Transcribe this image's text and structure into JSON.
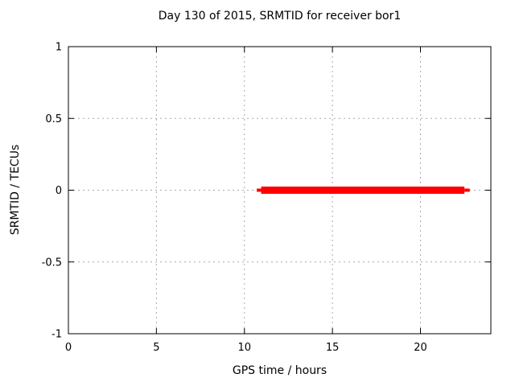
{
  "figure": {
    "title": "Day 130 of 2015, SRMTID for receiver bor1",
    "xlabel": "GPS time / hours",
    "ylabel": "SRMTID / TECUs"
  },
  "chart_data": {
    "type": "line",
    "title": "Day 130 of 2015, SRMTID for receiver bor1",
    "xlabel": "GPS time / hours",
    "ylabel": "SRMTID / TECUs",
    "xlim": [
      0,
      24
    ],
    "ylim": [
      -1,
      1
    ],
    "xticks": {
      "values": [
        0,
        5,
        10,
        15,
        20
      ],
      "labels": [
        "0",
        "5",
        "10",
        "15",
        "20"
      ]
    },
    "yticks": {
      "values": [
        1,
        0.5,
        0,
        -0.5,
        -1
      ],
      "labels": [
        "1",
        "0.5",
        "0",
        "-0.5",
        "-1"
      ]
    },
    "grid": true,
    "grid_style": "dashed",
    "legend": "none",
    "series": [
      {
        "name": "SRMTID",
        "color": "#ff0000",
        "y_value": 0,
        "x_start": 10.7,
        "x_end": 22.8,
        "segments": [
          {
            "x0": 10.7,
            "x1": 10.95,
            "line_width": 4
          },
          {
            "x0": 10.95,
            "x1": 22.5,
            "line_width": 9
          },
          {
            "x0": 22.5,
            "x1": 22.8,
            "line_width": 4
          }
        ]
      }
    ],
    "colors": {
      "series": "#ff0000",
      "grid": "#a8a8a8",
      "axis": "#000000",
      "background": "#ffffff",
      "text": "#000000"
    }
  }
}
